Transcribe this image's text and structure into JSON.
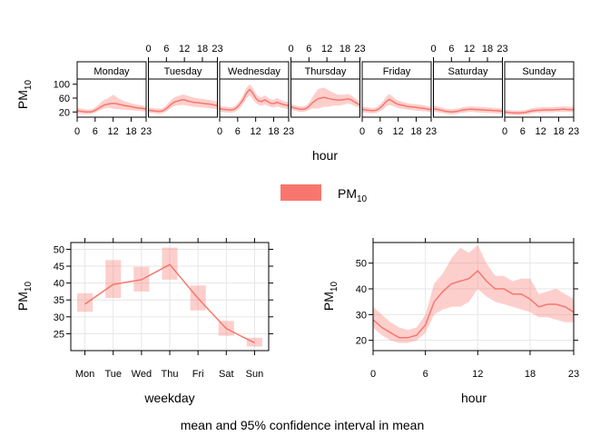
{
  "chart_data": [
    {
      "type": "line",
      "subtype": "faceted-line-with-ribbon",
      "facet_labels": [
        "Monday",
        "Tuesday",
        "Wednesday",
        "Thursday",
        "Friday",
        "Saturday",
        "Sunday"
      ],
      "x_ticks": [
        "0",
        "6",
        "12",
        "18",
        "23"
      ],
      "y_ticks": [
        "20",
        "60",
        "100"
      ],
      "xlabel": "hour",
      "ylabel_main": "PM",
      "ylabel_sub": "10",
      "ylim": [
        5,
        115
      ],
      "xlim": [
        0,
        23
      ],
      "series_name_main": "PM",
      "series_name_sub": "10",
      "series": [
        {
          "facet": "Monday",
          "mean": [
            24,
            22,
            21,
            20,
            20,
            21,
            25,
            30,
            35,
            40,
            42,
            44,
            45,
            44,
            42,
            40,
            38,
            37,
            35,
            33,
            32,
            31,
            30,
            28
          ],
          "lower": [
            16,
            15,
            14,
            14,
            14,
            15,
            18,
            22,
            26,
            30,
            32,
            32,
            30,
            28,
            28,
            27,
            27,
            26,
            25,
            24,
            24,
            23,
            22,
            21
          ],
          "upper": [
            32,
            30,
            29,
            27,
            27,
            28,
            33,
            40,
            48,
            55,
            58,
            64,
            70,
            64,
            58,
            54,
            50,
            48,
            45,
            43,
            41,
            40,
            38,
            36
          ]
        },
        {
          "facet": "Tuesday",
          "mean": [
            25,
            24,
            23,
            22,
            22,
            24,
            30,
            38,
            45,
            50,
            52,
            55,
            55,
            52,
            50,
            48,
            47,
            46,
            45,
            44,
            43,
            42,
            40,
            38
          ],
          "lower": [
            18,
            17,
            16,
            15,
            15,
            17,
            22,
            28,
            34,
            38,
            39,
            40,
            40,
            38,
            37,
            35,
            34,
            33,
            33,
            32,
            31,
            30,
            29,
            28
          ],
          "upper": [
            33,
            32,
            31,
            30,
            30,
            32,
            40,
            50,
            58,
            64,
            66,
            70,
            70,
            67,
            64,
            62,
            60,
            59,
            58,
            56,
            55,
            54,
            52,
            50
          ]
        },
        {
          "facet": "Wednesday",
          "mean": [
            30,
            28,
            27,
            26,
            26,
            28,
            35,
            45,
            58,
            75,
            85,
            75,
            60,
            52,
            50,
            55,
            50,
            45,
            44,
            48,
            45,
            42,
            40,
            38
          ],
          "lower": [
            22,
            20,
            19,
            18,
            18,
            20,
            26,
            34,
            45,
            60,
            68,
            58,
            46,
            40,
            38,
            42,
            38,
            34,
            33,
            36,
            34,
            32,
            30,
            28
          ],
          "upper": [
            38,
            36,
            35,
            34,
            34,
            36,
            45,
            56,
            72,
            90,
            100,
            90,
            74,
            64,
            62,
            68,
            62,
            56,
            55,
            60,
            56,
            52,
            50,
            48
          ]
        },
        {
          "facet": "Thursday",
          "mean": [
            35,
            32,
            30,
            28,
            28,
            30,
            36,
            45,
            52,
            58,
            60,
            62,
            60,
            58,
            56,
            55,
            54,
            55,
            56,
            58,
            55,
            50,
            45,
            40
          ],
          "lower": [
            26,
            24,
            22,
            20,
            20,
            22,
            26,
            30,
            30,
            30,
            32,
            35,
            35,
            36,
            38,
            38,
            38,
            40,
            42,
            45,
            42,
            38,
            34,
            30
          ],
          "upper": [
            44,
            40,
            38,
            36,
            36,
            38,
            46,
            60,
            74,
            86,
            88,
            90,
            86,
            80,
            76,
            72,
            70,
            70,
            70,
            72,
            68,
            62,
            56,
            50
          ]
        },
        {
          "facet": "Friday",
          "mean": [
            28,
            26,
            25,
            24,
            24,
            26,
            32,
            40,
            50,
            56,
            52,
            46,
            42,
            40,
            38,
            36,
            35,
            34,
            33,
            32,
            31,
            30,
            28,
            27
          ],
          "lower": [
            20,
            18,
            17,
            16,
            16,
            18,
            22,
            28,
            36,
            40,
            38,
            34,
            31,
            30,
            28,
            27,
            26,
            25,
            24,
            23,
            22,
            22,
            20,
            19
          ],
          "upper": [
            36,
            34,
            33,
            32,
            32,
            34,
            42,
            52,
            64,
            72,
            66,
            58,
            53,
            50,
            48,
            45,
            44,
            43,
            42,
            41,
            40,
            38,
            36,
            35
          ]
        },
        {
          "facet": "Saturday",
          "mean": [
            30,
            28,
            26,
            24,
            22,
            21,
            20,
            21,
            22,
            24,
            26,
            27,
            28,
            28,
            27,
            27,
            26,
            26,
            25,
            25,
            24,
            24,
            23,
            22
          ],
          "lower": [
            22,
            20,
            18,
            17,
            15,
            14,
            13,
            14,
            15,
            17,
            18,
            19,
            20,
            20,
            19,
            19,
            18,
            18,
            17,
            17,
            16,
            16,
            15,
            15
          ],
          "upper": [
            40,
            37,
            34,
            32,
            30,
            29,
            28,
            29,
            30,
            32,
            34,
            35,
            36,
            36,
            35,
            35,
            34,
            34,
            33,
            33,
            32,
            32,
            31,
            30
          ]
        },
        {
          "facet": "Sunday",
          "mean": [
            20,
            19,
            18,
            17,
            17,
            17,
            18,
            19,
            21,
            23,
            24,
            25,
            25,
            26,
            26,
            26,
            26,
            27,
            27,
            28,
            28,
            27,
            27,
            27
          ],
          "lower": [
            14,
            13,
            12,
            11,
            11,
            11,
            12,
            13,
            14,
            16,
            17,
            18,
            18,
            19,
            19,
            19,
            19,
            20,
            20,
            20,
            20,
            20,
            20,
            19
          ],
          "upper": [
            27,
            26,
            25,
            24,
            24,
            24,
            25,
            26,
            28,
            31,
            32,
            33,
            33,
            34,
            34,
            34,
            34,
            35,
            35,
            36,
            36,
            35,
            35,
            35
          ]
        }
      ],
      "legend_placement": "bottom-center",
      "color": "#f8766d"
    },
    {
      "type": "line",
      "subtype": "line-with-confidence-boxes",
      "categories": [
        "Mon",
        "Tue",
        "Wed",
        "Thu",
        "Fri",
        "Sat",
        "Sun"
      ],
      "values": [
        33.8,
        39.6,
        41.0,
        45.5,
        35.5,
        26.5,
        22.3
      ],
      "lower": [
        31.5,
        35.6,
        37.5,
        41.0,
        31.9,
        24.4,
        21.2
      ],
      "upper": [
        37.0,
        46.8,
        44.8,
        50.5,
        39.3,
        28.8,
        23.8
      ],
      "y_ticks": [
        "25",
        "30",
        "35",
        "40",
        "45",
        "50"
      ],
      "ylim": [
        20,
        52
      ],
      "xlabel": "weekday",
      "ylabel_main": "PM",
      "ylabel_sub": "10",
      "grid": true,
      "color": "#f8766d"
    },
    {
      "type": "line",
      "subtype": "line-with-ribbon",
      "x": [
        0,
        1,
        2,
        3,
        4,
        5,
        6,
        7,
        8,
        9,
        10,
        11,
        12,
        13,
        14,
        15,
        16,
        17,
        18,
        19,
        20,
        21,
        22,
        23
      ],
      "values": [
        28,
        25,
        23,
        21,
        21,
        22,
        26,
        35,
        39,
        42,
        43,
        44,
        47,
        43,
        40,
        40,
        38,
        38,
        36,
        33,
        34,
        34,
        33,
        31
      ],
      "lower": [
        25,
        22,
        20,
        19,
        19,
        20,
        23,
        30,
        32,
        33,
        33,
        35,
        40,
        37,
        35,
        34,
        33,
        32,
        31,
        29,
        29,
        28,
        27,
        27
      ],
      "upper": [
        33,
        30,
        27,
        25,
        24,
        25,
        30,
        42,
        46,
        52,
        56,
        54,
        57,
        50,
        45,
        45,
        43,
        44,
        44,
        38,
        39,
        40,
        38,
        36
      ],
      "x_ticks": [
        "0",
        "6",
        "12",
        "18",
        "23"
      ],
      "y_ticks": [
        "20",
        "30",
        "40",
        "50"
      ],
      "xlim": [
        0,
        23
      ],
      "ylim": [
        16,
        58
      ],
      "xlabel": "hour",
      "ylabel_main": "PM",
      "ylabel_sub": "10",
      "grid": true,
      "color": "#f8766d"
    }
  ],
  "caption": "mean and 95% confidence interval in mean"
}
